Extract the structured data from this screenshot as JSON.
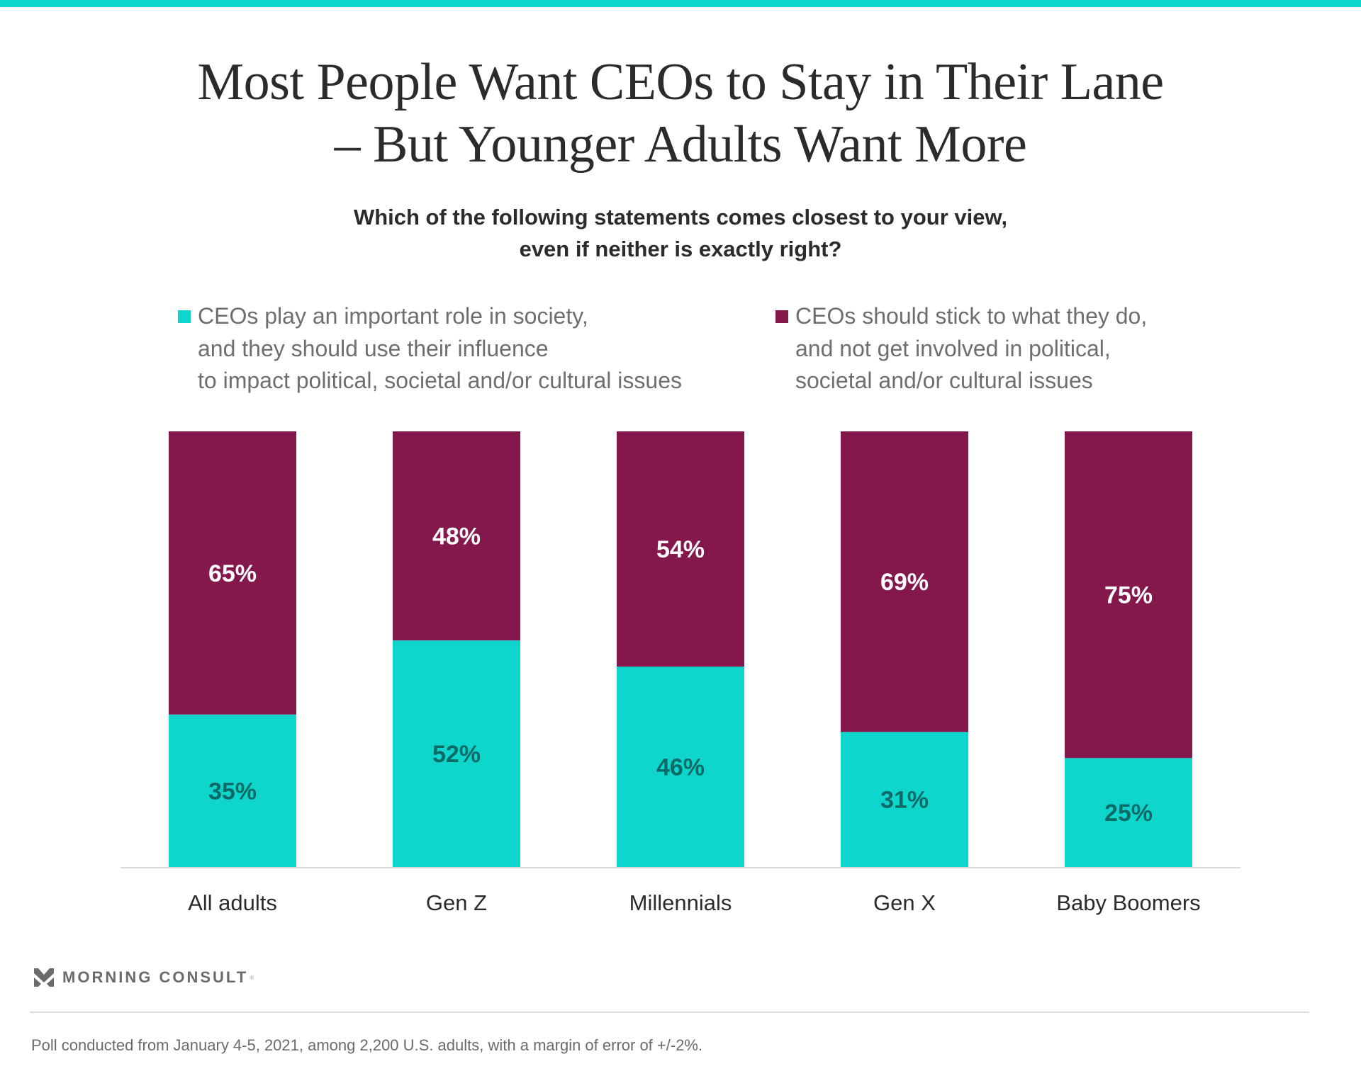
{
  "header": {
    "title_lines": [
      "Most People Want CEOs to Stay in Their Lane",
      "– But Younger Adults Want More"
    ],
    "subtitle_lines": [
      "Which of the following statements comes closest to your view,",
      "even if neither is exactly right?"
    ]
  },
  "colors": {
    "accent_teal": "#0fd6cc",
    "maroon": "#84184c",
    "teal_label": "#0a6b66",
    "maroon_label": "#ffffff"
  },
  "legend": [
    {
      "swatch_color": "#0fd6cc",
      "lines": [
        "CEOs play an important role in society,",
        "and they should use their influence",
        "to impact political, societal and/or cultural issues"
      ]
    },
    {
      "swatch_color": "#84184c",
      "lines": [
        "CEOs should stick to what they do,",
        "and not get involved in political,",
        "societal and/or cultural issues"
      ]
    }
  ],
  "chart_data": {
    "type": "bar",
    "stacked": true,
    "percent_stacked": true,
    "title": "Most People Want CEOs to Stay in Their Lane – But Younger Adults Want More",
    "subtitle": "Which of the following statements comes closest to your view, even if neither is exactly right?",
    "xlabel": "",
    "ylabel": "",
    "ylim": [
      0,
      100
    ],
    "grid": false,
    "legend_position": "top",
    "categories": [
      "All adults",
      "Gen Z",
      "Millennials",
      "Gen X",
      "Baby Boomers"
    ],
    "series": [
      {
        "name": "CEOs play an important role in society, and they should use their influence to impact political, societal and/or cultural issues",
        "color": "#0fd6cc",
        "label_color": "#0a6b66",
        "values": [
          35,
          52,
          46,
          31,
          25
        ],
        "labels": [
          "35%",
          "52%",
          "46%",
          "31%",
          "25%"
        ]
      },
      {
        "name": "CEOs should stick to what they do, and not get involved in political, societal and/or cultural issues",
        "color": "#84184c",
        "label_color": "#ffffff",
        "values": [
          65,
          48,
          54,
          69,
          75
        ],
        "labels": [
          "65%",
          "48%",
          "54%",
          "69%",
          "75%"
        ]
      }
    ]
  },
  "footer": {
    "brand": "MORNING CONSULT",
    "brand_mark": "®",
    "note": "Poll conducted from January 4-5, 2021, among 2,200 U.S. adults, with a margin of error of +/-2%."
  }
}
